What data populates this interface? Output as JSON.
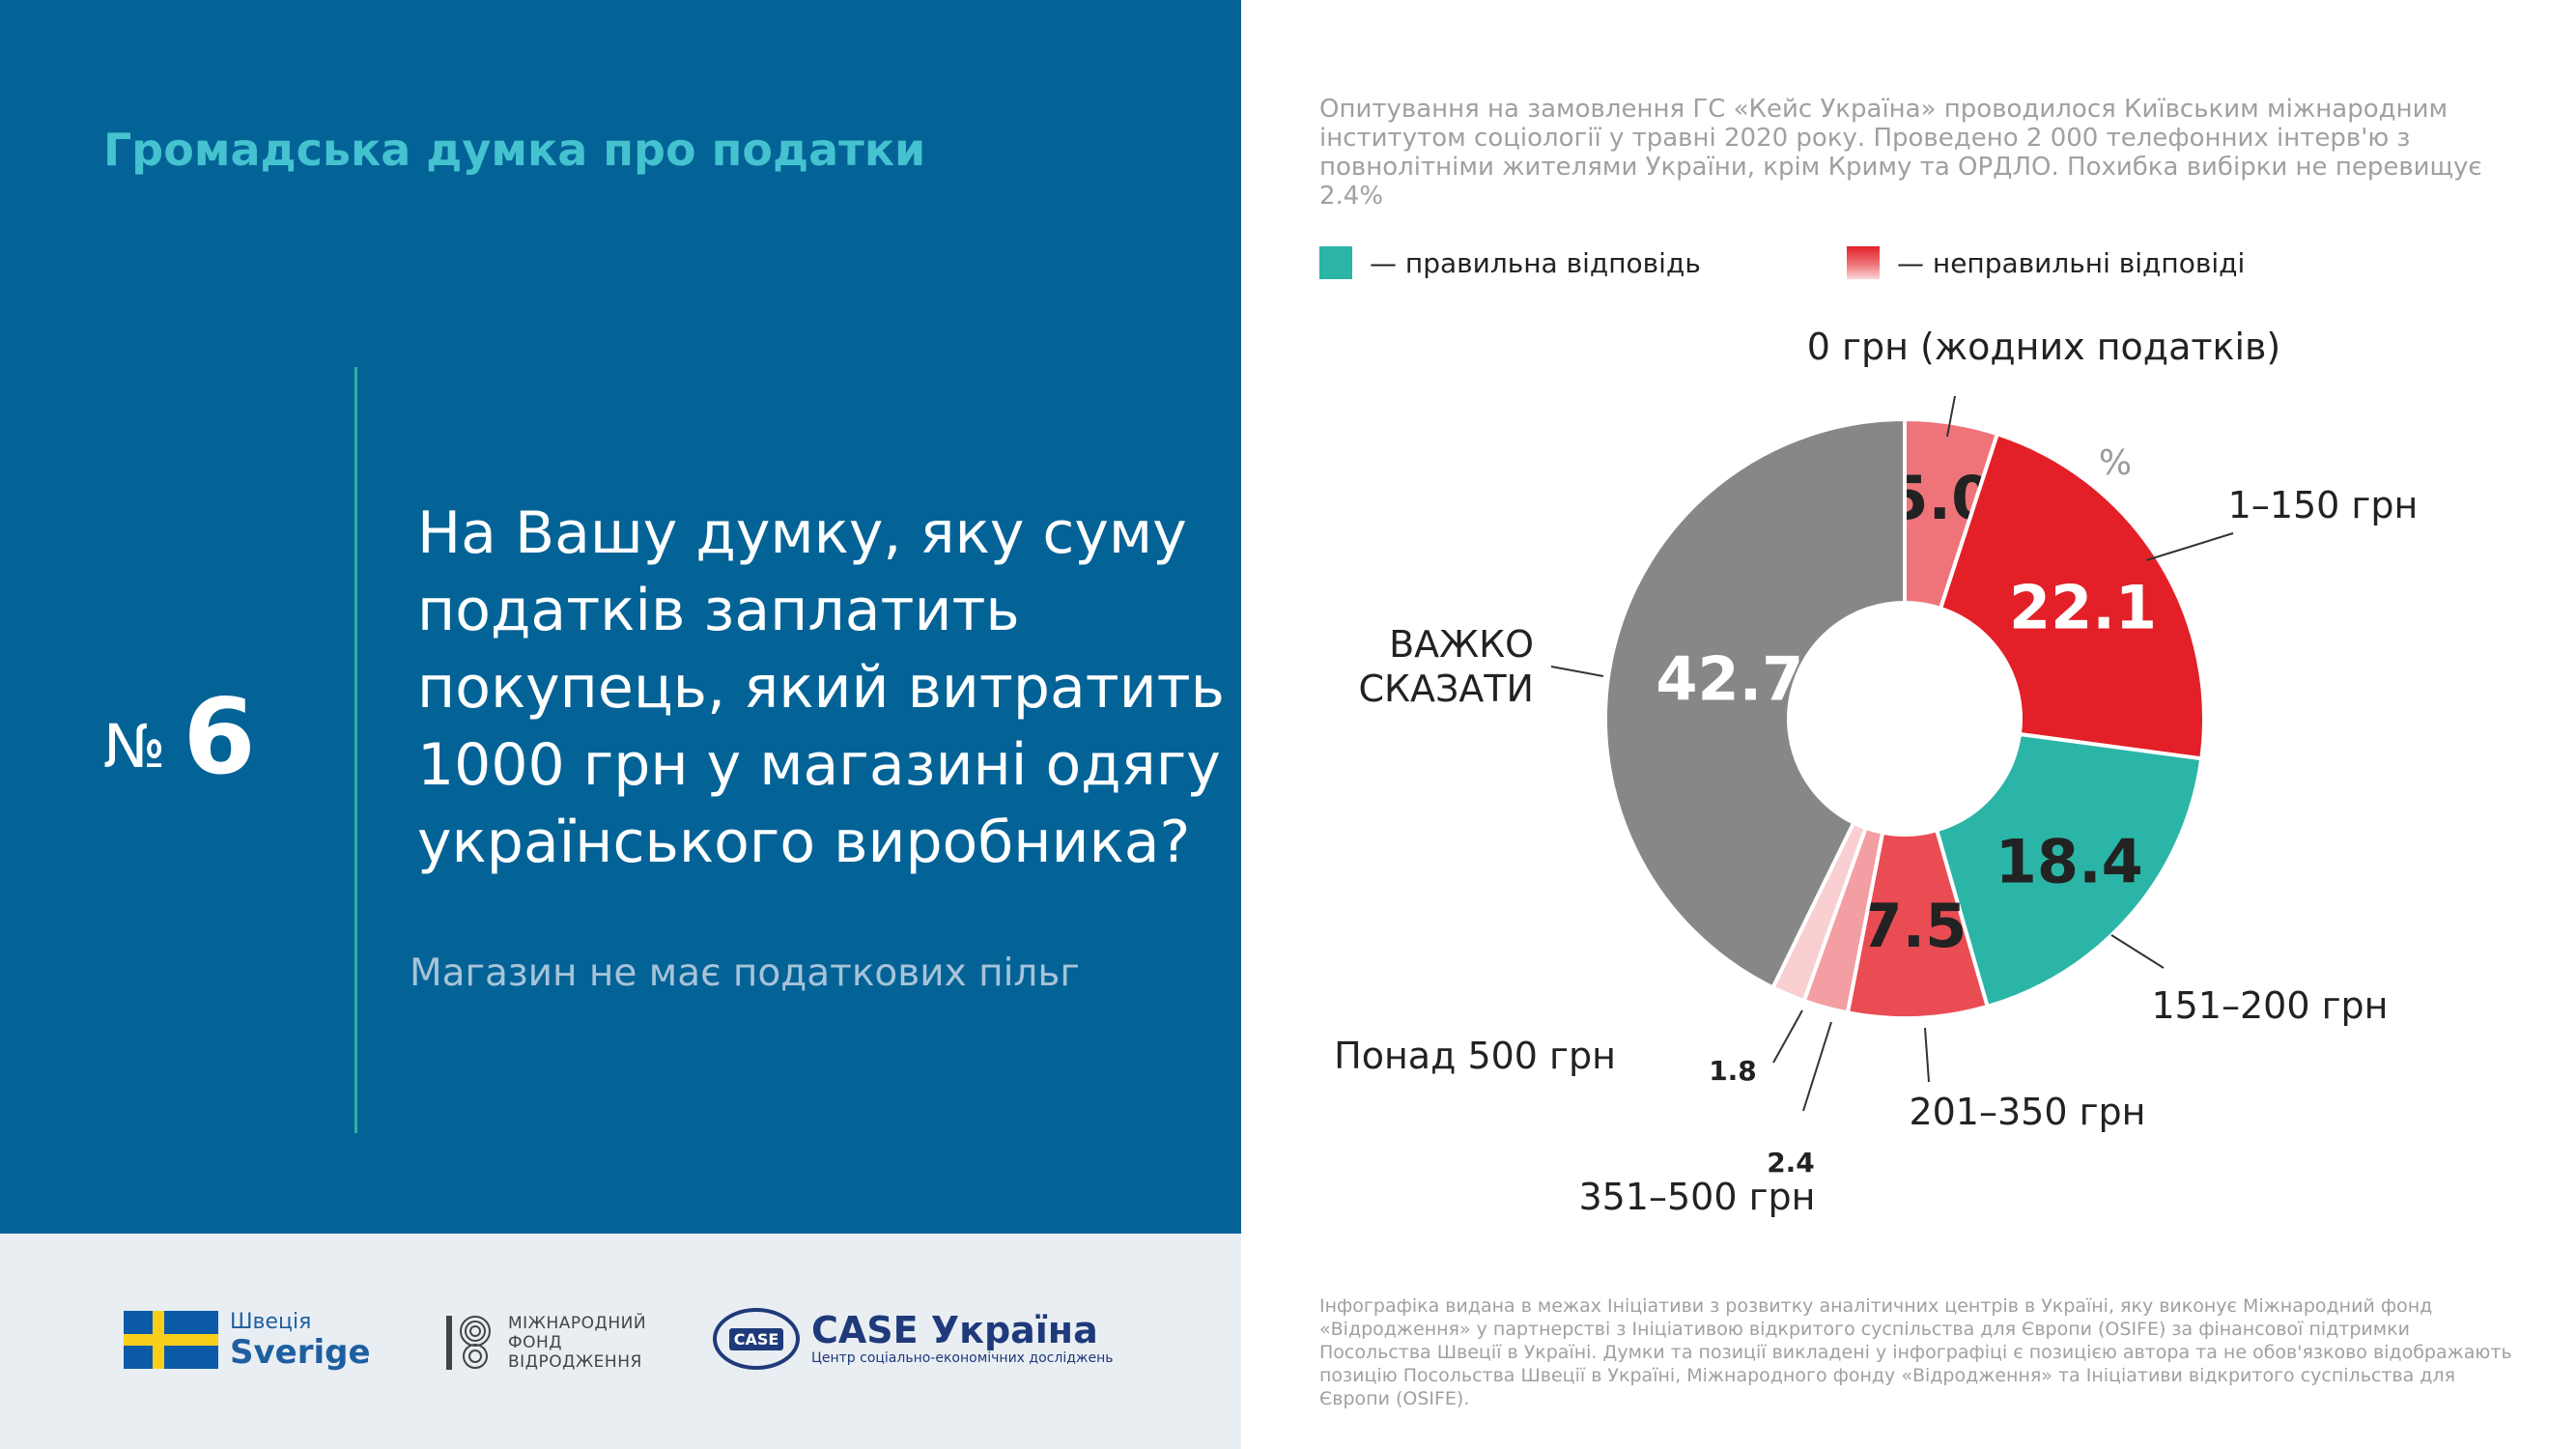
{
  "header": {
    "topic": "Громадська думка про податки"
  },
  "question": {
    "number_symbol": "№",
    "number": "6",
    "text": "На Вашу думку, яку суму податків заплатить покупець, який витратить 1000 грн у магазині одягу українського виробника?",
    "note": "Магазин не має податкових пільг"
  },
  "survey_note": "Опитування на замовлення ГС «Кейс Україна» проводилося Київським міжнародним інститутом соціології у травні 2020 року. Проведено 2 000 телефонних інтерв'ю з повнолітніми жителями України, крім Криму та ОРДЛО. Похибка вибірки не перевищує 2.4%",
  "legend": {
    "correct_label": "— правильна відповідь",
    "wrong_label": "— неправильні відповіді"
  },
  "colors": {
    "panel": "#036397",
    "accent_teal": "#2bb5a7",
    "wrong_red": "#e32028",
    "neutral_gray": "#878787"
  },
  "chart_data": {
    "type": "pie",
    "unit_label": "%",
    "slices": [
      {
        "label": "0 грн (жодних податків)",
        "value": 5.0,
        "value_label": "5.0",
        "color": "#ef7479",
        "correct": false
      },
      {
        "label": "1–150 грн",
        "value": 22.1,
        "value_label": "22.1",
        "color": "#e32028",
        "correct": false
      },
      {
        "label": "151–200 грн",
        "value": 18.4,
        "value_label": "18.4",
        "color": "#2bb5a7",
        "correct": true
      },
      {
        "label": "201–350 грн",
        "value": 7.5,
        "value_label": "7.5",
        "color": "#ea4c54",
        "correct": false
      },
      {
        "label": "351–500 грн",
        "value": 2.4,
        "value_label": "2.4",
        "color": "#f39ea2",
        "correct": false
      },
      {
        "label": "Понад 500 грн",
        "value": 1.8,
        "value_label": "1.8",
        "color": "#f9cfd1",
        "correct": false
      },
      {
        "label": "ВАЖКО СКАЗАТИ",
        "value": 42.7,
        "value_label": "42.7",
        "color": "#878787",
        "correct": false
      }
    ]
  },
  "logos": {
    "sweden_line1": "Швеція",
    "sweden_line2": "Sverige",
    "irf_line1": "МІЖНАРОДНИЙ",
    "irf_line2": "ФОНД",
    "irf_line3": "ВІДРОДЖЕННЯ",
    "case_badge": "CASE",
    "case_name": "CASE Україна",
    "case_subtitle": "Центр соціально-економічних досліджень"
  },
  "footer_note": "Інфографіка видана в межах Ініціативи з розвитку аналітичних центрів в Україні, яку виконує Міжнародний фонд «Відродження» у партнерстві з Ініціативою відкритого суспільства для Європи (OSIFE) за фінансової підтримки Посольства Швеції в Україні. Думки та позиції викладені у інфографіці є позицією автора та не обов'язково відображають позицію Посольства Швеції в Україні, Міжнародного фонду «Відродження» та Ініціативи відкритого суспільства для Європи (OSIFE)."
}
